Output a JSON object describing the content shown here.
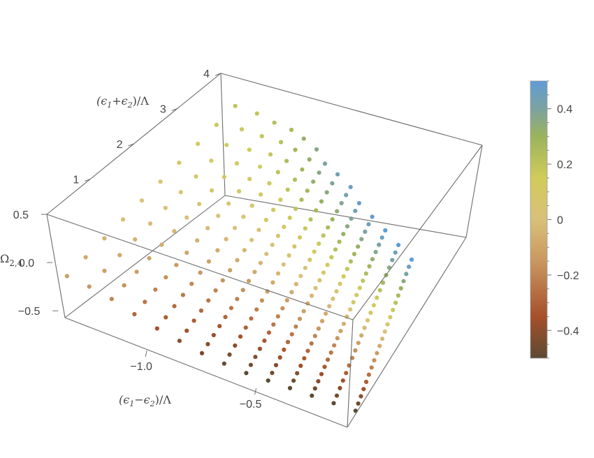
{
  "chart_data": {
    "type": "scatter",
    "title": "",
    "axes": {
      "x": {
        "label_parts": [
          "(",
          "ϵ",
          "1",
          "−",
          "ϵ",
          "2",
          ")/Λ"
        ],
        "range": [
          -1.4,
          0.0
        ],
        "ticks": [
          {
            "value": -1.0,
            "label": "−1.0"
          },
          {
            "value": -0.5,
            "label": "−0.5"
          }
        ]
      },
      "y": {
        "label_parts": [
          "(",
          "ϵ",
          "1",
          "+",
          "ϵ",
          "2",
          ")/Λ"
        ],
        "range": [
          0,
          4
        ],
        "ticks": [
          {
            "value": 1,
            "label": "1"
          },
          {
            "value": 2,
            "label": "2"
          },
          {
            "value": 3,
            "label": "3"
          },
          {
            "value": 4,
            "label": "4"
          }
        ]
      },
      "z": {
        "label_main": "Ω",
        "label_sub": "2,4",
        "range": [
          -0.6,
          0.5
        ],
        "ticks": [
          {
            "value": -0.5,
            "label": "−0.5"
          },
          {
            "value": 0.0,
            "label": "0.0"
          },
          {
            "value": 0.5,
            "label": "0.5"
          }
        ]
      }
    },
    "colorbar": {
      "range": [
        -0.5,
        0.5
      ],
      "ticks": [
        {
          "value": 0.4,
          "label": "0.4"
        },
        {
          "value": 0.2,
          "label": "0.2"
        },
        {
          "value": 0.0,
          "label": "0"
        },
        {
          "value": -0.2,
          "label": "−0.2"
        },
        {
          "value": -0.4,
          "label": "−0.4"
        }
      ],
      "gradient": [
        {
          "v": -0.5,
          "color": "#5c4a33"
        },
        {
          "v": -0.35,
          "color": "#a6502a"
        },
        {
          "v": -0.15,
          "color": "#c99760"
        },
        {
          "v": 0.0,
          "color": "#d9c07a"
        },
        {
          "v": 0.15,
          "color": "#d0cc5a"
        },
        {
          "v": 0.3,
          "color": "#9bb35c"
        },
        {
          "v": 0.4,
          "color": "#7ba3a0"
        },
        {
          "v": 0.5,
          "color": "#5f9cd6"
        }
      ]
    },
    "series": [
      {
        "x": -1.35,
        "y_min": 0.05,
        "y_max": 4.0,
        "z_min": -0.12,
        "z_max": 0.2,
        "n": 10
      },
      {
        "x": -1.25,
        "y_min": 0.05,
        "y_max": 4.0,
        "z_min": -0.15,
        "z_max": 0.2,
        "n": 12
      },
      {
        "x": -1.15,
        "y_min": 0.05,
        "y_max": 3.9,
        "z_min": -0.2,
        "z_max": 0.22,
        "n": 14
      },
      {
        "x": -1.05,
        "y_min": 0.05,
        "y_max": 3.8,
        "z_min": -0.28,
        "z_max": 0.26,
        "n": 16
      },
      {
        "x": -0.95,
        "y_min": 0.05,
        "y_max": 3.6,
        "z_min": -0.35,
        "z_max": 0.32,
        "n": 18
      },
      {
        "x": -0.85,
        "y_min": 0.05,
        "y_max": 3.4,
        "z_min": -0.4,
        "z_max": 0.36,
        "n": 20
      },
      {
        "x": -0.75,
        "y_min": 0.05,
        "y_max": 3.1,
        "z_min": -0.45,
        "z_max": 0.4,
        "n": 22
      },
      {
        "x": -0.65,
        "y_min": 0.05,
        "y_max": 2.9,
        "z_min": -0.48,
        "z_max": 0.44,
        "n": 22
      },
      {
        "x": -0.55,
        "y_min": 0.05,
        "y_max": 2.7,
        "z_min": -0.5,
        "z_max": 0.46,
        "n": 24
      },
      {
        "x": -0.45,
        "y_min": 0.05,
        "y_max": 2.4,
        "z_min": -0.5,
        "z_max": 0.48,
        "n": 24
      },
      {
        "x": -0.35,
        "y_min": 0.05,
        "y_max": 2.2,
        "z_min": -0.5,
        "z_max": 0.49,
        "n": 24
      },
      {
        "x": -0.25,
        "y_min": 0.05,
        "y_max": 2.0,
        "z_min": -0.5,
        "z_max": 0.5,
        "n": 24
      },
      {
        "x": -0.15,
        "y_min": 0.05,
        "y_max": 1.8,
        "z_min": -0.5,
        "z_max": 0.5,
        "n": 22
      },
      {
        "x": -0.05,
        "y_min": 0.05,
        "y_max": 1.6,
        "z_min": -0.5,
        "z_max": 0.5,
        "n": 22
      }
    ]
  }
}
